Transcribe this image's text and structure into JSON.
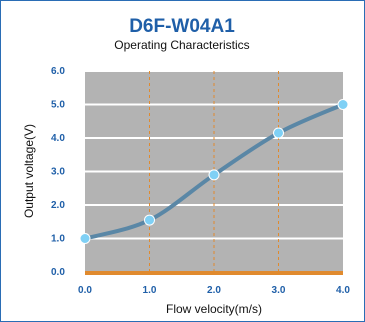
{
  "chart_data": {
    "type": "line",
    "title": "D6F-W04A1",
    "subtitle": "Operating Characteristics",
    "xlabel": "Flow velocity(m/s)",
    "ylabel": "Output voltage(V)",
    "x": [
      0.0,
      1.0,
      2.0,
      3.0,
      4.0
    ],
    "xticks": [
      "0.0",
      "1.0",
      "2.0",
      "3.0",
      "4.0"
    ],
    "yticks": [
      "0.0",
      "1.0",
      "2.0",
      "3.0",
      "4.0",
      "5.0",
      "6.0"
    ],
    "xlim": [
      0,
      4
    ],
    "ylim": [
      0,
      6
    ],
    "series": [
      {
        "values": [
          1.0,
          1.55,
          2.9,
          4.15,
          5.0
        ]
      }
    ],
    "grid": {
      "horizontal": true,
      "vertical_dashed": true
    },
    "colors": {
      "plot_background": "#b3b3b3",
      "grid_horizontal": "#ffffff",
      "grid_vertical": "#e08a2e",
      "baseline": "#e08a2e",
      "line": "#5a87a6",
      "marker": "#7fd0f5",
      "tick_text": "#1f5fa8",
      "title_text": "#1f5fa8",
      "frame": "#2a6db5"
    }
  }
}
